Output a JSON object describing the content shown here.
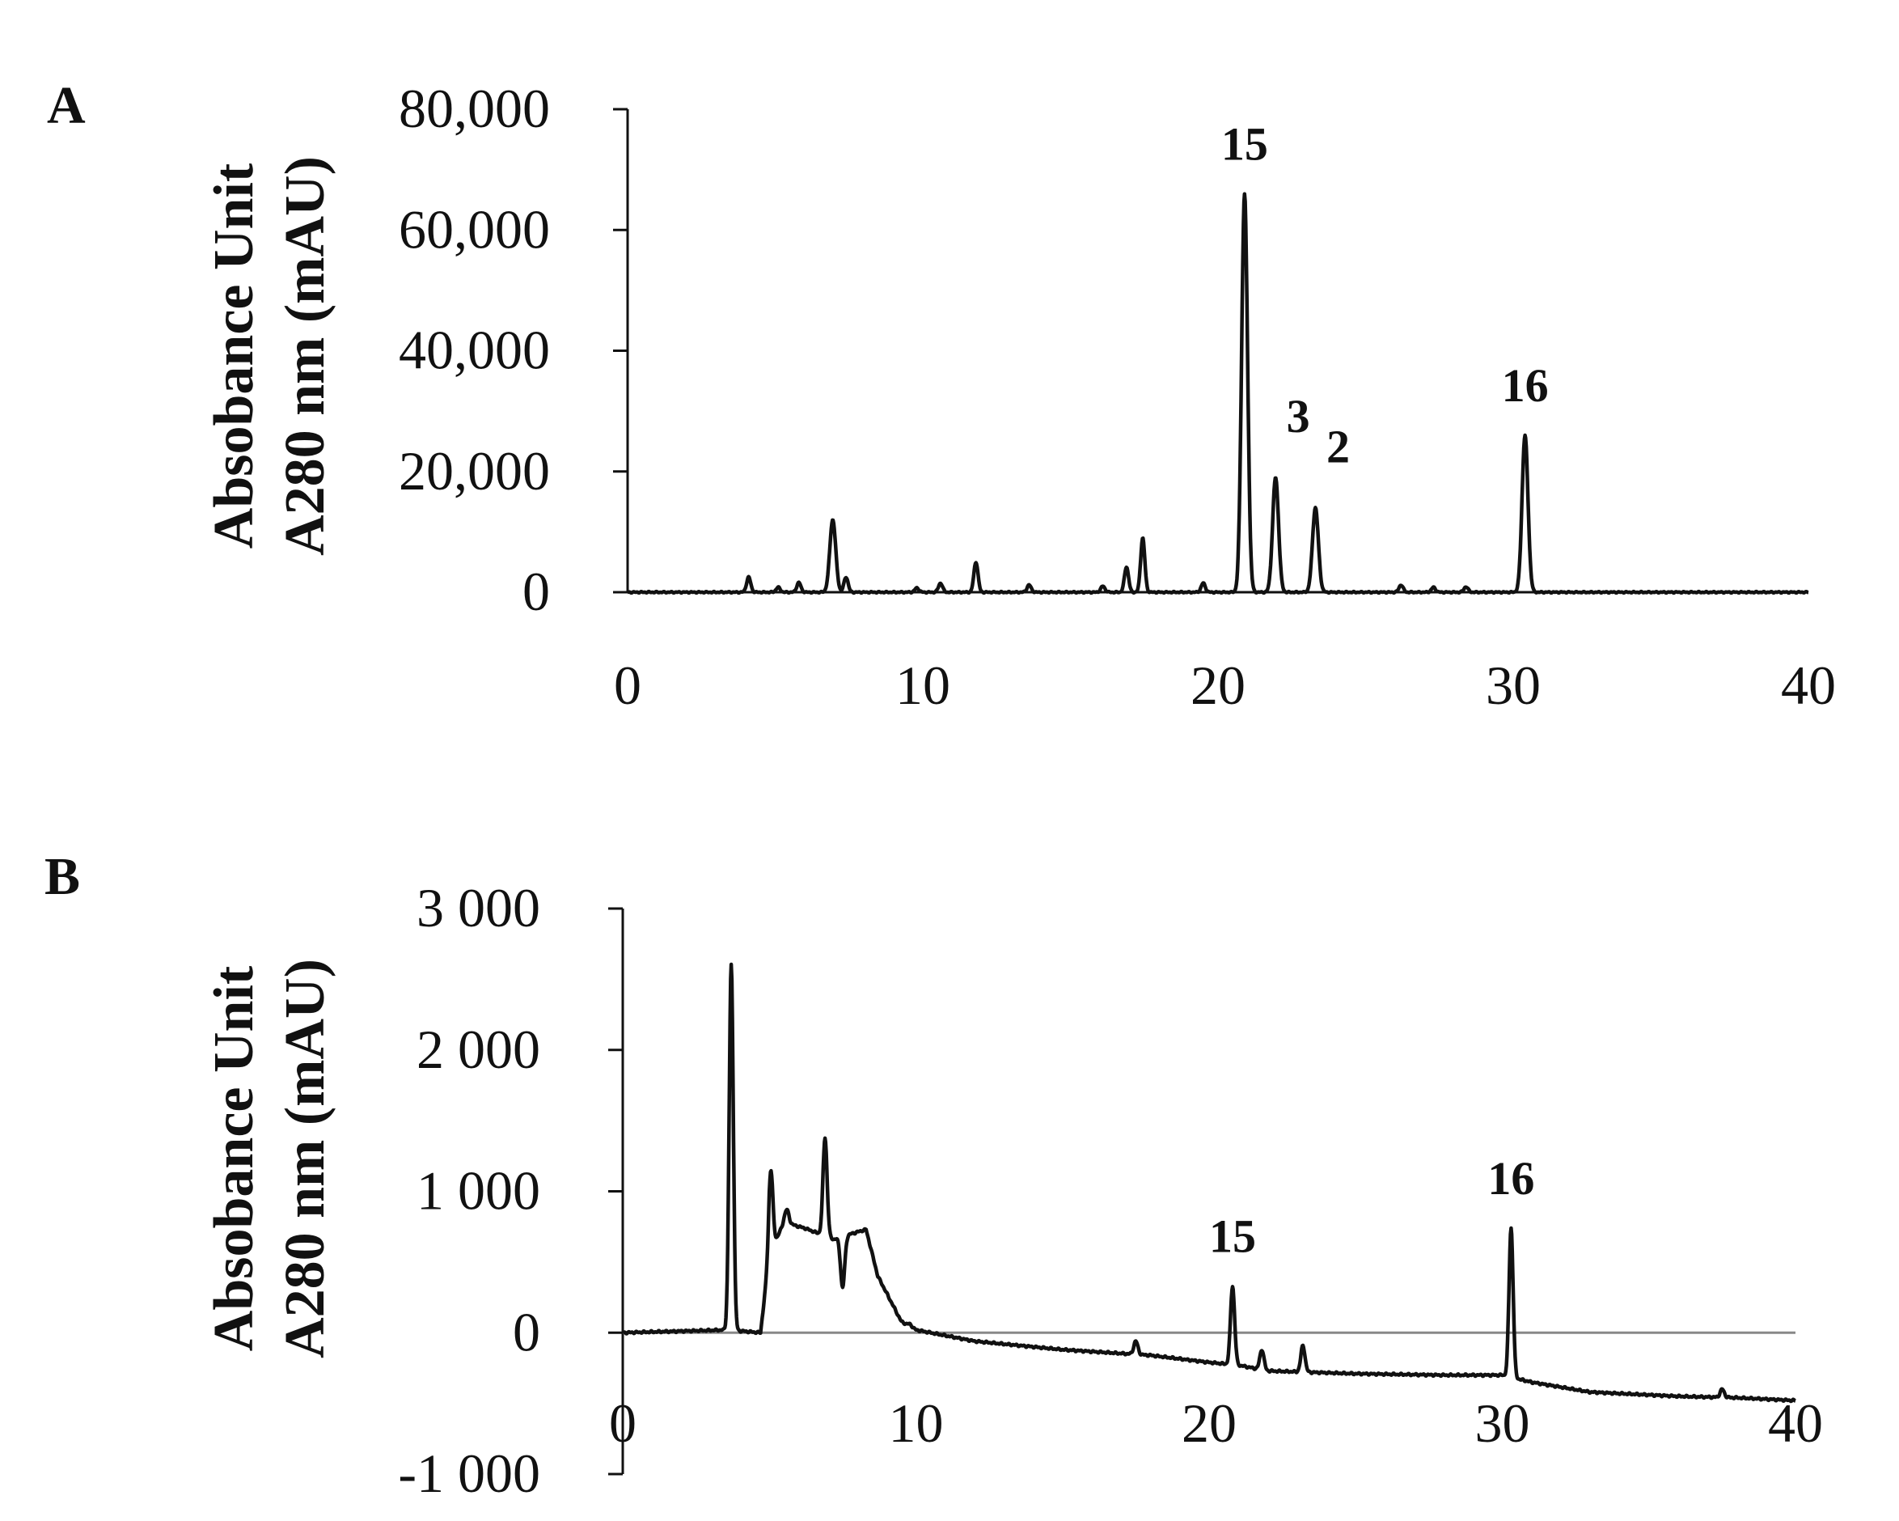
{
  "chart_data": [
    {
      "type": "line",
      "panel_label": "A",
      "ylabel_lines": [
        "Absobance Unit",
        "A280 nm (mAU)"
      ],
      "xlabel": "",
      "xlim": [
        0,
        40
      ],
      "ylim": [
        0,
        80000
      ],
      "x_ticks": [
        "0",
        "10",
        "20",
        "30",
        "40"
      ],
      "y_ticks": [
        "0",
        "20,000",
        "40,000",
        "60,000",
        "80,000"
      ],
      "x_axis_at_zero": true,
      "baseline": 0,
      "peaks": [
        {
          "x": 4.1,
          "y": 2500
        },
        {
          "x": 5.1,
          "y": 800
        },
        {
          "x": 5.8,
          "y": 1600
        },
        {
          "x": 6.95,
          "y": 12000
        },
        {
          "x": 7.4,
          "y": 2500
        },
        {
          "x": 9.8,
          "y": 700
        },
        {
          "x": 10.6,
          "y": 1500
        },
        {
          "x": 11.8,
          "y": 5000
        },
        {
          "x": 13.6,
          "y": 1200
        },
        {
          "x": 16.1,
          "y": 1000
        },
        {
          "x": 16.9,
          "y": 4200
        },
        {
          "x": 17.45,
          "y": 9000
        },
        {
          "x": 19.5,
          "y": 1500
        },
        {
          "x": 20.9,
          "y": 66000
        },
        {
          "x": 21.95,
          "y": 19000
        },
        {
          "x": 23.3,
          "y": 14000
        },
        {
          "x": 26.2,
          "y": 1200
        },
        {
          "x": 27.3,
          "y": 800
        },
        {
          "x": 28.4,
          "y": 900
        },
        {
          "x": 30.4,
          "y": 26000
        }
      ],
      "annotations": [
        {
          "text": "15",
          "x": 20.9,
          "y": 66000
        },
        {
          "text": "3",
          "x": 21.95,
          "y": 19000
        },
        {
          "text": "2",
          "x": 23.3,
          "y": 14000
        },
        {
          "text": "16",
          "x": 30.4,
          "y": 26000
        }
      ]
    },
    {
      "type": "line",
      "panel_label": "B",
      "ylabel_lines": [
        "Absobance Unit",
        "A280 nm (mAU)"
      ],
      "xlabel": "",
      "xlim": [
        0,
        40
      ],
      "ylim": [
        -1000,
        3000
      ],
      "x_ticks": [
        "0",
        "10",
        "20",
        "30",
        "40"
      ],
      "y_ticks": [
        "-1 000",
        "0",
        "1 000",
        "2 000",
        "3 000"
      ],
      "x_axis_at_zero": true,
      "baseline_profile": [
        [
          0,
          0
        ],
        [
          3.6,
          20
        ],
        [
          4.7,
          0
        ],
        [
          5.0,
          550
        ],
        [
          5.5,
          780
        ],
        [
          6.2,
          740
        ],
        [
          7.2,
          660
        ],
        [
          7.8,
          700
        ],
        [
          8.3,
          730
        ],
        [
          8.7,
          400
        ],
        [
          9.5,
          80
        ],
        [
          10,
          20
        ],
        [
          12,
          -60
        ],
        [
          15,
          -120
        ],
        [
          18,
          -160
        ],
        [
          20,
          -210
        ],
        [
          21,
          -230
        ],
        [
          22,
          -270
        ],
        [
          25,
          -290
        ],
        [
          28,
          -300
        ],
        [
          30,
          -300
        ],
        [
          31,
          -350
        ],
        [
          33,
          -420
        ],
        [
          36,
          -450
        ],
        [
          38,
          -460
        ],
        [
          40,
          -480
        ]
      ],
      "peaks": [
        {
          "x": 3.7,
          "y": 2600
        },
        {
          "x": 5.05,
          "y": 1150
        },
        {
          "x": 5.6,
          "y": 870
        },
        {
          "x": 6.9,
          "y": 1380
        },
        {
          "x": 7.5,
          "y": 320
        },
        {
          "x": 9.8,
          "y": 60
        },
        {
          "x": 17.5,
          "y": -60
        },
        {
          "x": 20.8,
          "y": 330
        },
        {
          "x": 21.8,
          "y": -120
        },
        {
          "x": 23.2,
          "y": -90
        },
        {
          "x": 30.3,
          "y": 740
        },
        {
          "x": 37.5,
          "y": -400
        }
      ],
      "annotations": [
        {
          "text": "15",
          "x": 20.8,
          "y": 330
        },
        {
          "text": "16",
          "x": 30.3,
          "y": 740
        }
      ]
    }
  ]
}
